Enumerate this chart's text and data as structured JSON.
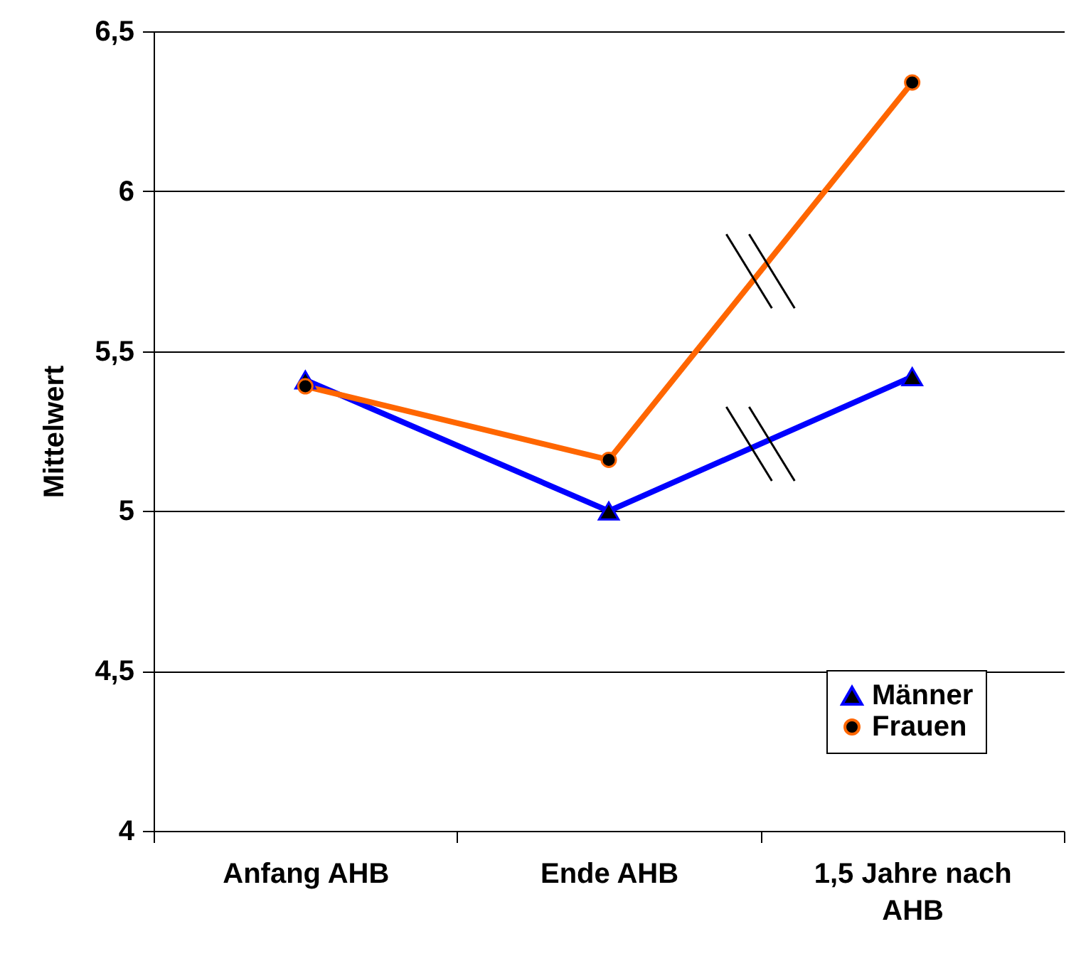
{
  "chart_data": {
    "type": "line",
    "ylabel": "Mittelwert",
    "categories": [
      "Anfang AHB",
      "Ende AHB",
      "1,5 Jahre nach AHB"
    ],
    "ylim": [
      4,
      6.5
    ],
    "yticks": [
      4,
      {
        "value": 4.5,
        "label": "4,5"
      },
      5,
      {
        "value": 5.5,
        "label": "5,5"
      },
      6,
      {
        "value": 6.5,
        "label": "6,5"
      }
    ],
    "grid": "y",
    "legend": "bottom right",
    "series": [
      {
        "name": "Männer",
        "color": "#0000ff",
        "marker": "triangle",
        "values": [
          5.41,
          5.0,
          5.42
        ]
      },
      {
        "name": "Frauen",
        "color": "#ff6600",
        "marker": "circle",
        "values": [
          5.39,
          5.16,
          6.34
        ]
      }
    ]
  }
}
